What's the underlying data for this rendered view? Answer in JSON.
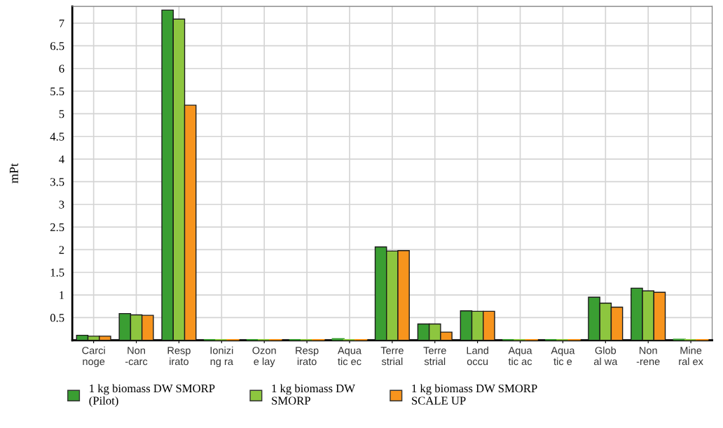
{
  "chart_data": {
    "type": "bar",
    "ylabel": "mPt",
    "categories": [
      "Carci\nnoge",
      "Non\n-carc",
      "Resp\nirato",
      "Ionizi\nng ra",
      "Ozon\ne lay",
      "Resp\nirato",
      "Aqua\ntic ec",
      "Terre\nstrial",
      "Terre\nstrial",
      "Land\noccu",
      "Aqua\ntic ac",
      "Aqua\ntic e",
      "Glob\nal wa",
      "Non\n-rene",
      "Mine\nral ex"
    ],
    "series": [
      {
        "name": "1 kg biomass DW SMORP\n(Pilot)",
        "color": "#3a9e32",
        "values": [
          0.11,
          0.59,
          7.29,
          0.01,
          0.01,
          0.01,
          0.03,
          2.06,
          0.36,
          0.65,
          0.01,
          0.01,
          0.95,
          1.15,
          0.02
        ]
      },
      {
        "name": "1 kg biomass DW\nSMORP",
        "color": "#8dc63f",
        "values": [
          0.09,
          0.56,
          7.09,
          0.01,
          0.01,
          0.01,
          0.01,
          1.97,
          0.36,
          0.64,
          0.01,
          0.01,
          0.82,
          1.09,
          0.01
        ]
      },
      {
        "name": "1 kg biomass DW SMORP\nSCALE UP",
        "color": "#f7941d",
        "values": [
          0.09,
          0.55,
          5.19,
          0.01,
          0.01,
          0.01,
          0.01,
          1.98,
          0.18,
          0.64,
          0.01,
          0.01,
          0.73,
          1.06,
          0.01
        ]
      }
    ],
    "ylim": [
      0,
      7.37
    ],
    "yticks": [
      0.5,
      1,
      1.5,
      2,
      2.5,
      3,
      3.5,
      4,
      4.5,
      5,
      5.5,
      6,
      6.5,
      7
    ],
    "grid": true,
    "legend": "bottom"
  }
}
